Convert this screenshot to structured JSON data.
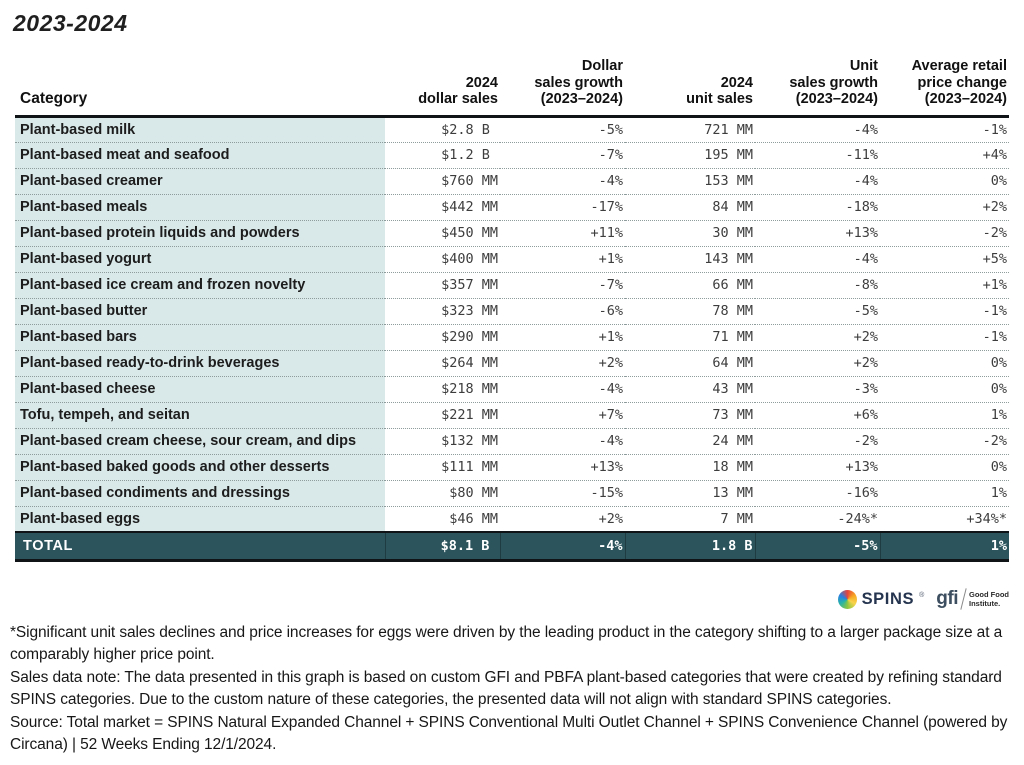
{
  "page": {
    "title": "2023-2024"
  },
  "chart_data": {
    "type": "table",
    "title": "2023-2024",
    "columns": [
      "Category",
      "2024\ndollar sales",
      "Dollar\nsales growth\n(2023–2024)",
      "2024\nunit sales",
      "Unit\nsales growth\n(2023–2024)",
      "Average retail\nprice change\n(2023–2024)"
    ],
    "rows": [
      [
        "Plant-based milk",
        "$2.8 B ",
        "-5%",
        "721 MM",
        "-4%",
        "-1%"
      ],
      [
        "Plant-based meat and seafood",
        "$1.2 B ",
        "-7%",
        "195 MM",
        "-11%",
        "+4%"
      ],
      [
        "Plant-based creamer",
        "$760 MM",
        "-4%",
        "153 MM",
        "-4%",
        "0%"
      ],
      [
        "Plant-based meals",
        "$442 MM",
        "-17%",
        "84 MM",
        "-18%",
        "+2%"
      ],
      [
        "Plant-based protein liquids and powders",
        "$450 MM",
        "+11%",
        "30 MM",
        "+13%",
        "-2%"
      ],
      [
        "Plant-based yogurt",
        "$400 MM",
        "+1%",
        "143 MM",
        "-4%",
        "+5%"
      ],
      [
        "Plant-based ice cream and frozen novelty",
        "$357 MM",
        "-7%",
        "66 MM",
        "-8%",
        "+1%"
      ],
      [
        "Plant-based butter",
        "$323 MM",
        "-6%",
        "78 MM",
        "-5%",
        "-1%"
      ],
      [
        "Plant-based bars",
        "$290 MM",
        "+1%",
        "71 MM",
        "+2%",
        "-1%"
      ],
      [
        "Plant-based ready-to-drink beverages",
        "$264 MM",
        "+2%",
        "64 MM",
        "+2%",
        "0%"
      ],
      [
        "Plant-based cheese",
        "$218 MM",
        "-4%",
        "43 MM",
        "-3%",
        "0%"
      ],
      [
        "Tofu, tempeh, and seitan",
        "$221 MM",
        "+7%",
        "73 MM",
        "+6%",
        "1%"
      ],
      [
        "Plant-based cream cheese, sour cream, and dips",
        "$132 MM",
        "-4%",
        "24 MM",
        "-2%",
        "-2%"
      ],
      [
        "Plant-based baked goods and other desserts",
        "$111 MM",
        "+13%",
        "18 MM",
        "+13%",
        "0%"
      ],
      [
        "Plant-based condiments and dressings",
        "$80 MM",
        "-15%",
        "13 MM",
        "-16%",
        "1%"
      ],
      [
        "Plant-based eggs",
        "$46 MM",
        "+2%",
        "7 MM",
        "-24%*",
        "+34%*"
      ]
    ],
    "total_row": [
      "TOTAL",
      "$8.1 B ",
      "-4%",
      "1.8 B",
      "-5%",
      "1%"
    ]
  },
  "logos": {
    "spins": "SPINS",
    "spins_mark": "®",
    "spins_icon": "spins-swirl-icon",
    "gfi": "gfi",
    "gfi_sub_line1": "Good Food",
    "gfi_sub_line2": "Institute."
  },
  "footnotes": [
    "*Significant unit sales declines and price increases for eggs were driven by the leading product in the category shifting to a larger package size at a comparably higher price point.",
    "Sales data note: The data presented in this graph is based on custom GFI and PBFA plant-based categories that were created by refining standard SPINS categories. Due to the custom nature of these categories, the presented data will not align with standard SPINS categories.",
    "Source: Total market = SPINS Natural Expanded Channel + SPINS Conventional Multi Outlet Channel + SPINS Convenience Channel (powered by Circana) | 52 Weeks Ending 12/1/2024."
  ],
  "colors": {
    "category_bg": "#d9e8e9",
    "total_bg": "#2b545c",
    "rule_black": "#101416",
    "spins_navy": "#25344f",
    "gfi_slate": "#3c4e5f"
  }
}
